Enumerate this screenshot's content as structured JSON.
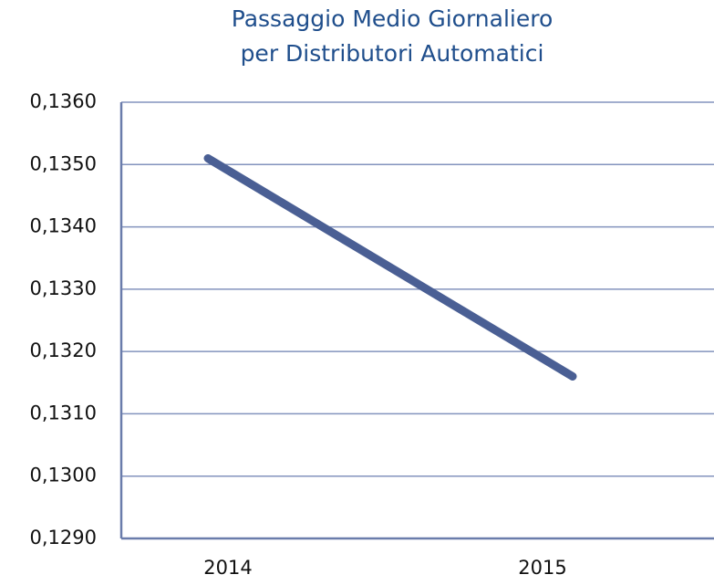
{
  "chart_data": {
    "type": "line",
    "title": [
      "Passaggio Medio Giornaliero",
      "per Distributori Automatici"
    ],
    "categories": [
      "2014",
      "2015"
    ],
    "series": [
      {
        "name": "Passaggio Medio Giornaliero",
        "color": "#4a5f94",
        "values": [
          0.1351,
          0.1316
        ]
      }
    ],
    "ylim": [
      0.129,
      0.136
    ],
    "yticks": [
      {
        "value": 0.129,
        "label": "0,1290"
      },
      {
        "value": 0.13,
        "label": "0,1300"
      },
      {
        "value": 0.131,
        "label": "0,1310"
      },
      {
        "value": 0.132,
        "label": "0,1320"
      },
      {
        "value": 0.133,
        "label": "0,1330"
      },
      {
        "value": 0.134,
        "label": "0,1340"
      },
      {
        "value": 0.135,
        "label": "0,1350"
      },
      {
        "value": 0.136,
        "label": "0,1360"
      }
    ],
    "grid": true
  }
}
